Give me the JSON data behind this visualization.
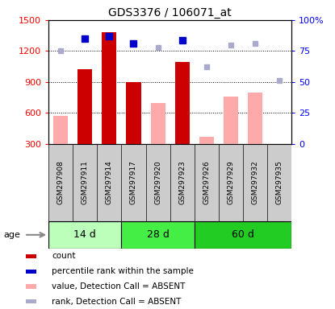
{
  "title": "GDS3376 / 106071_at",
  "samples": [
    "GSM297908",
    "GSM297911",
    "GSM297914",
    "GSM297917",
    "GSM297920",
    "GSM297923",
    "GSM297926",
    "GSM297929",
    "GSM297932",
    "GSM297935"
  ],
  "ylim_left": [
    300,
    1500
  ],
  "ylim_right": [
    0,
    100
  ],
  "yticks_left": [
    300,
    600,
    900,
    1200,
    1500
  ],
  "yticks_right": [
    0,
    25,
    50,
    75,
    100
  ],
  "bar_values": {
    "GSM297908": null,
    "GSM297911": 1020,
    "GSM297914": 1380,
    "GSM297917": 895,
    "GSM297920": null,
    "GSM297923": 1090,
    "GSM297926": null,
    "GSM297929": null,
    "GSM297932": null,
    "GSM297935": null
  },
  "absent_bar_values": {
    "GSM297908": 570,
    "GSM297911": null,
    "GSM297914": null,
    "GSM297917": null,
    "GSM297920": 695,
    "GSM297923": null,
    "GSM297926": 370,
    "GSM297929": 760,
    "GSM297932": 800,
    "GSM297935": null
  },
  "rank_values": {
    "GSM297908": null,
    "GSM297911": 85,
    "GSM297914": 87,
    "GSM297917": 81,
    "GSM297920": null,
    "GSM297923": 84,
    "GSM297926": null,
    "GSM297929": null,
    "GSM297932": null,
    "GSM297935": null
  },
  "absent_rank_values": {
    "GSM297908": 75,
    "GSM297911": null,
    "GSM297914": null,
    "GSM297917": null,
    "GSM297920": 78,
    "GSM297923": null,
    "GSM297926": 62,
    "GSM297929": 80,
    "GSM297932": 81,
    "GSM297935": 51
  },
  "bar_color": "#cc0000",
  "absent_bar_color": "#ffaaaa",
  "rank_color": "#0000cc",
  "absent_rank_color": "#aaaacc",
  "groups": [
    {
      "label": "14 d",
      "start": 0,
      "end": 2,
      "color": "#bbffbb"
    },
    {
      "label": "28 d",
      "start": 3,
      "end": 5,
      "color": "#44ee44"
    },
    {
      "label": "60 d",
      "start": 6,
      "end": 9,
      "color": "#22cc22"
    }
  ],
  "legend_items": [
    {
      "color": "#cc0000",
      "label": "count"
    },
    {
      "color": "#0000cc",
      "label": "percentile rank within the sample"
    },
    {
      "color": "#ffaaaa",
      "label": "value, Detection Call = ABSENT"
    },
    {
      "color": "#aaaacc",
      "label": "rank, Detection Call = ABSENT"
    }
  ]
}
